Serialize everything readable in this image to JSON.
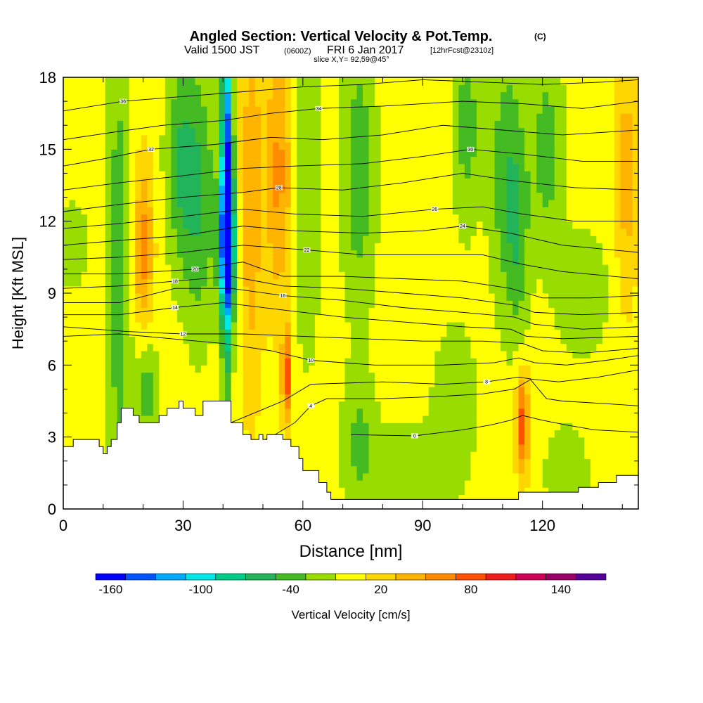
{
  "header": {
    "title_main": "Angled Section: Vertical Velocity & Pot.Temp.",
    "title_unit": "(C)",
    "valid_prefix": "Valid 1500 JST",
    "valid_utc": "(0600Z)",
    "valid_date": "FRI 6 Jan 2017",
    "forecast": "[12hrFcst@2310z]",
    "slice": "slice X,Y= 92,59@45°"
  },
  "chart_data": {
    "type": "heatmap",
    "xlabel": "Distance [nm]",
    "ylabel": "Height [Kft MSL]",
    "xlim": [
      0,
      144
    ],
    "ylim": [
      0,
      18
    ],
    "x_ticks": [
      0,
      30,
      60,
      90,
      120
    ],
    "y_ticks": [
      0,
      3,
      6,
      9,
      12,
      15,
      18
    ],
    "x_tick_labels": [
      "0",
      "30",
      "60",
      "90",
      "120"
    ],
    "y_tick_labels": [
      "0",
      "3",
      "6",
      "9",
      "12",
      "15",
      "18"
    ],
    "colorbar": {
      "label": "Vertical Velocity [cm/s]",
      "range": [
        -170,
        170
      ],
      "bin_edges": [
        -170,
        -150,
        -130,
        -110,
        -90,
        -70,
        -50,
        -30,
        -10,
        10,
        30,
        50,
        70,
        90,
        110,
        130,
        150,
        170
      ],
      "tick_values": [
        -160,
        -100,
        -40,
        20,
        80,
        140
      ],
      "tick_labels": [
        "-160",
        "-100",
        "-40",
        "20",
        "80",
        "140"
      ],
      "colors": [
        "#0000ff",
        "#0055ff",
        "#00aaff",
        "#00e8e8",
        "#00cc88",
        "#22b45a",
        "#44bb22",
        "#99dd00",
        "#ffff00",
        "#ffd700",
        "#ffb400",
        "#ff8c00",
        "#ff5000",
        "#ee1c1c",
        "#cc0055",
        "#990066",
        "#550099"
      ]
    },
    "background_value": 0,
    "anomalies": [
      {
        "x": 2,
        "y": 11,
        "sx": 3,
        "sy": 1.2,
        "value": -30
      },
      {
        "x": 14,
        "y": 10,
        "sx": 2.2,
        "sy": 7,
        "value": -45
      },
      {
        "x": 21,
        "y": 5,
        "sx": 2,
        "sy": 1.6,
        "value": -40
      },
      {
        "x": 20,
        "y": 11,
        "sx": 1.8,
        "sy": 2.5,
        "value": 60
      },
      {
        "x": 29,
        "y": 14.5,
        "sx": 2.5,
        "sy": 3,
        "value": -45
      },
      {
        "x": 34,
        "y": 13,
        "sx": 3,
        "sy": 4,
        "value": -50
      },
      {
        "x": 41,
        "y": 13.5,
        "sx": 1,
        "sy": 5,
        "value": -155
      },
      {
        "x": 41,
        "y": 11,
        "sx": 1.6,
        "sy": 2,
        "value": -90
      },
      {
        "x": 47,
        "y": 13,
        "sx": 2,
        "sy": 6,
        "value": 45
      },
      {
        "x": 54,
        "y": 14,
        "sx": 2.5,
        "sy": 4,
        "value": 55
      },
      {
        "x": 56,
        "y": 5.6,
        "sx": 0.9,
        "sy": 1.4,
        "value": 80
      },
      {
        "x": 61,
        "y": 13,
        "sx": 2.5,
        "sy": 5,
        "value": -30
      },
      {
        "x": 74,
        "y": 14,
        "sx": 3,
        "sy": 4,
        "value": -45
      },
      {
        "x": 74,
        "y": 3,
        "sx": 3,
        "sy": 2,
        "value": -30
      },
      {
        "x": 87,
        "y": 1.5,
        "sx": 9,
        "sy": 1.5,
        "value": -25
      },
      {
        "x": 98,
        "y": 5,
        "sx": 4,
        "sy": 2,
        "value": -25
      },
      {
        "x": 101,
        "y": 16,
        "sx": 2.5,
        "sy": 3,
        "value": -40
      },
      {
        "x": 111,
        "y": 14,
        "sx": 3,
        "sy": 4,
        "value": -45
      },
      {
        "x": 115,
        "y": 3.6,
        "sx": 1.2,
        "sy": 1.5,
        "value": 85
      },
      {
        "x": 114,
        "y": 11,
        "sx": 2,
        "sy": 3,
        "value": -30
      },
      {
        "x": 121,
        "y": 15,
        "sx": 3,
        "sy": 3,
        "value": -40
      },
      {
        "x": 126,
        "y": 1.5,
        "sx": 4,
        "sy": 1.5,
        "value": -25
      },
      {
        "x": 141,
        "y": 14,
        "sx": 2,
        "sy": 4,
        "value": 40
      },
      {
        "x": 130,
        "y": 9,
        "sx": 5,
        "sy": 2,
        "value": -25
      }
    ],
    "terrain": [
      [
        0,
        2.6
      ],
      [
        2.5,
        2.9
      ],
      [
        9,
        2.6
      ],
      [
        10,
        2.3
      ],
      [
        11,
        2.6
      ],
      [
        12,
        2.9
      ],
      [
        13.5,
        3.6
      ],
      [
        14.5,
        4.2
      ],
      [
        17,
        4.2
      ],
      [
        17.5,
        3.9
      ],
      [
        19,
        3.6
      ],
      [
        23,
        3.6
      ],
      [
        24,
        3.9
      ],
      [
        26,
        4.2
      ],
      [
        29,
        4.5
      ],
      [
        30,
        4.2
      ],
      [
        33,
        3.9
      ],
      [
        35,
        4.5
      ],
      [
        38,
        4.5
      ],
      [
        42,
        3.6
      ],
      [
        45,
        3.1
      ],
      [
        47,
        2.9
      ],
      [
        49,
        3.1
      ],
      [
        50,
        2.9
      ],
      [
        51,
        3.1
      ],
      [
        53,
        3.1
      ],
      [
        55,
        2.9
      ],
      [
        57,
        2.6
      ],
      [
        59,
        2.1
      ],
      [
        60,
        1.6
      ],
      [
        63,
        1.6
      ],
      [
        64,
        1.1
      ],
      [
        66,
        0.7
      ],
      [
        67,
        0.4
      ],
      [
        72,
        0.4
      ],
      [
        113,
        0.4
      ],
      [
        114,
        0.7
      ],
      [
        127,
        0.7
      ],
      [
        129,
        0.9
      ],
      [
        134,
        1.1
      ],
      [
        138,
        1.1
      ],
      [
        138.5,
        1.4
      ],
      [
        144,
        1.4
      ]
    ],
    "contours": [
      {
        "label": "0",
        "label_x": 88,
        "points": [
          [
            72,
            3.1
          ],
          [
            88,
            3.05
          ],
          [
            100,
            3.3
          ],
          [
            107,
            3.5
          ],
          [
            112,
            3.7
          ],
          [
            115,
            3.9
          ],
          [
            120,
            3.7
          ],
          [
            126,
            3.5
          ],
          [
            133,
            3.3
          ],
          [
            144,
            3.2
          ]
        ]
      },
      {
        "label": "4",
        "label_x": 62,
        "points": [
          [
            40,
            2.2
          ],
          [
            52,
            3.0
          ],
          [
            58,
            3.6
          ],
          [
            62,
            4.3
          ],
          [
            66,
            4.6
          ],
          [
            80,
            4.6
          ],
          [
            95,
            4.7
          ],
          [
            105,
            4.8
          ],
          [
            113,
            5.0
          ],
          [
            117,
            5.4
          ],
          [
            121,
            4.6
          ],
          [
            125,
            4.5
          ],
          [
            135,
            4.4
          ],
          [
            144,
            4.3
          ]
        ]
      },
      {
        "label": "8",
        "label_x": 106,
        "points": [
          [
            30,
            3.2
          ],
          [
            42,
            3.6
          ],
          [
            55,
            4.5
          ],
          [
            62,
            5.2
          ],
          [
            80,
            5.3
          ],
          [
            95,
            5.2
          ],
          [
            106,
            5.3
          ],
          [
            114,
            5.5
          ],
          [
            118,
            5.4
          ],
          [
            124,
            5.3
          ],
          [
            134,
            5.5
          ],
          [
            144,
            5.8
          ]
        ]
      },
      {
        "label": "10",
        "label_x": 62,
        "points": [
          [
            0,
            7.2
          ],
          [
            14,
            7.3
          ],
          [
            27,
            7.1
          ],
          [
            40,
            6.9
          ],
          [
            52,
            6.6
          ],
          [
            62,
            6.2
          ],
          [
            78,
            6.0
          ],
          [
            95,
            6.0
          ],
          [
            108,
            6.1
          ],
          [
            114,
            6.3
          ],
          [
            118,
            6.1
          ],
          [
            126,
            6.0
          ],
          [
            136,
            6.2
          ],
          [
            144,
            6.4
          ]
        ]
      },
      {
        "label": "12",
        "label_x": 30,
        "points": [
          [
            0,
            7.6
          ],
          [
            16,
            7.4
          ],
          [
            30,
            7.3
          ],
          [
            45,
            7.3
          ],
          [
            60,
            7.2
          ],
          [
            75,
            7.1
          ],
          [
            90,
            7.0
          ],
          [
            105,
            7.0
          ],
          [
            115,
            6.9
          ],
          [
            120,
            6.6
          ],
          [
            130,
            6.5
          ],
          [
            144,
            6.7
          ]
        ]
      },
      {
        "label": "14",
        "label_x": 28,
        "points": [
          [
            0,
            8.1
          ],
          [
            14,
            8.1
          ],
          [
            28,
            8.4
          ],
          [
            40,
            8.6
          ],
          [
            55,
            8.3
          ],
          [
            70,
            8.0
          ],
          [
            85,
            7.8
          ],
          [
            100,
            7.6
          ],
          [
            112,
            7.5
          ],
          [
            116,
            7.2
          ],
          [
            125,
            7.1
          ],
          [
            144,
            7.2
          ]
        ]
      },
      {
        "label": "16",
        "label_x": 55,
        "points": [
          [
            0,
            8.6
          ],
          [
            14,
            8.6
          ],
          [
            28,
            9.2
          ],
          [
            42,
            9.2
          ],
          [
            55,
            8.9
          ],
          [
            70,
            8.7
          ],
          [
            85,
            8.4
          ],
          [
            100,
            8.2
          ],
          [
            113,
            8.0
          ],
          [
            118,
            7.7
          ],
          [
            130,
            7.5
          ],
          [
            144,
            7.6
          ]
        ]
      },
      {
        "label": "18",
        "label_x": 28,
        "points": [
          [
            0,
            9.2
          ],
          [
            14,
            9.3
          ],
          [
            28,
            9.5
          ],
          [
            42,
            9.7
          ],
          [
            55,
            9.3
          ],
          [
            70,
            9.2
          ],
          [
            85,
            9.0
          ],
          [
            100,
            8.8
          ],
          [
            113,
            8.5
          ],
          [
            118,
            8.2
          ],
          [
            130,
            8.1
          ],
          [
            144,
            8.2
          ]
        ]
      },
      {
        "label": "20",
        "label_x": 33,
        "points": [
          [
            0,
            9.8
          ],
          [
            14,
            9.8
          ],
          [
            33,
            10.0
          ],
          [
            45,
            10.3
          ],
          [
            55,
            9.7
          ],
          [
            70,
            9.7
          ],
          [
            85,
            9.6
          ],
          [
            100,
            9.5
          ],
          [
            112,
            9.2
          ],
          [
            120,
            8.8
          ],
          [
            132,
            8.8
          ],
          [
            144,
            8.9
          ]
        ]
      },
      {
        "label": "22",
        "label_x": 61,
        "points": [
          [
            0,
            10.4
          ],
          [
            14,
            10.5
          ],
          [
            30,
            10.7
          ],
          [
            45,
            11.0
          ],
          [
            61,
            10.8
          ],
          [
            75,
            10.6
          ],
          [
            90,
            10.6
          ],
          [
            105,
            10.6
          ],
          [
            115,
            10.2
          ],
          [
            125,
            9.9
          ],
          [
            144,
            9.6
          ]
        ]
      },
      {
        "label": "24",
        "label_x": 100,
        "points": [
          [
            0,
            11.0
          ],
          [
            14,
            11.2
          ],
          [
            30,
            11.4
          ],
          [
            45,
            11.8
          ],
          [
            58,
            11.6
          ],
          [
            75,
            11.5
          ],
          [
            90,
            11.6
          ],
          [
            100,
            11.8
          ],
          [
            112,
            11.5
          ],
          [
            125,
            11.0
          ],
          [
            144,
            10.7
          ]
        ]
      },
      {
        "label": "26",
        "label_x": 93,
        "points": [
          [
            0,
            11.7
          ],
          [
            14,
            11.9
          ],
          [
            30,
            12.2
          ],
          [
            45,
            12.5
          ],
          [
            58,
            12.3
          ],
          [
            75,
            12.2
          ],
          [
            93,
            12.5
          ],
          [
            105,
            12.6
          ],
          [
            115,
            12.3
          ],
          [
            128,
            12.0
          ],
          [
            144,
            12.0
          ]
        ]
      },
      {
        "label": "28",
        "label_x": 54,
        "points": [
          [
            0,
            12.4
          ],
          [
            14,
            12.7
          ],
          [
            30,
            13.0
          ],
          [
            45,
            13.2
          ],
          [
            54,
            13.4
          ],
          [
            70,
            13.3
          ],
          [
            85,
            13.6
          ],
          [
            100,
            14.0
          ],
          [
            112,
            13.7
          ],
          [
            128,
            13.4
          ],
          [
            144,
            13.3
          ]
        ]
      },
      {
        "label": "30",
        "label_x": 102,
        "points": [
          [
            0,
            13.3
          ],
          [
            14,
            13.6
          ],
          [
            30,
            13.9
          ],
          [
            45,
            14.2
          ],
          [
            58,
            14.3
          ],
          [
            75,
            14.4
          ],
          [
            90,
            14.7
          ],
          [
            102,
            15.0
          ],
          [
            115,
            14.8
          ],
          [
            130,
            14.5
          ],
          [
            144,
            14.5
          ]
        ]
      },
      {
        "label": "32",
        "label_x": 22,
        "points": [
          [
            0,
            14.3
          ],
          [
            10,
            14.6
          ],
          [
            22,
            15.0
          ],
          [
            38,
            15.2
          ],
          [
            52,
            15.5
          ],
          [
            65,
            15.4
          ],
          [
            80,
            15.6
          ],
          [
            95,
            16.0
          ],
          [
            110,
            15.8
          ],
          [
            125,
            15.6
          ],
          [
            144,
            15.8
          ]
        ]
      },
      {
        "label": "34",
        "label_x": 64,
        "points": [
          [
            0,
            15.4
          ],
          [
            12,
            15.7
          ],
          [
            25,
            16.0
          ],
          [
            40,
            16.2
          ],
          [
            52,
            16.5
          ],
          [
            64,
            16.7
          ],
          [
            80,
            16.8
          ],
          [
            100,
            17.0
          ],
          [
            115,
            16.9
          ],
          [
            130,
            16.7
          ],
          [
            144,
            17.0
          ]
        ]
      },
      {
        "label": "36",
        "label_x": 15,
        "points": [
          [
            0,
            16.6
          ],
          [
            15,
            17.0
          ],
          [
            30,
            17.2
          ],
          [
            45,
            17.4
          ],
          [
            60,
            17.6
          ],
          [
            75,
            17.7
          ],
          [
            90,
            17.9
          ],
          [
            105,
            17.8
          ],
          [
            120,
            17.7
          ],
          [
            135,
            17.8
          ],
          [
            144,
            17.9
          ]
        ]
      }
    ]
  }
}
